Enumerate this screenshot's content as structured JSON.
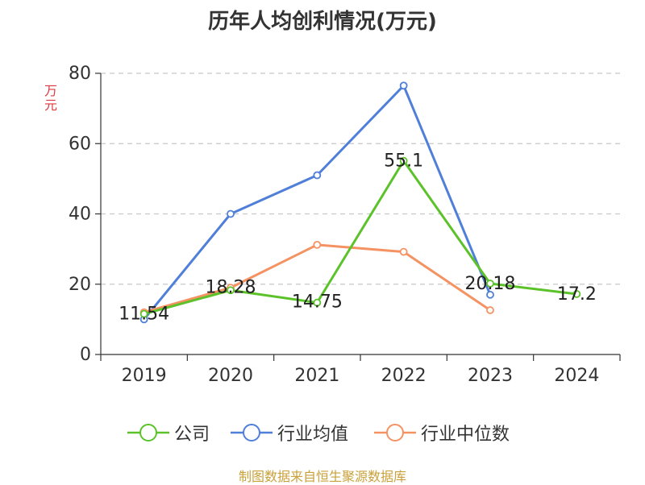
{
  "title": "历年人均创利情况(万元)",
  "source_text": "制图数据来自恒生聚源数据库",
  "colors": {
    "company": "#5cc22a",
    "industry_avg": "#4f7fd9",
    "industry_median": "#f59262",
    "grid": "#c8c8c8",
    "axis": "#333333",
    "unit_label": "#e0393e",
    "source": "#c9a13a"
  },
  "chart_data": {
    "type": "line",
    "title": "历年人均创利情况(万元)",
    "ylabel": "万元",
    "xlabel": "",
    "ylim": [
      0,
      80
    ],
    "yticks": [
      0,
      20,
      40,
      60,
      80
    ],
    "categories": [
      "2019",
      "2020",
      "2021",
      "2022",
      "2023",
      "2024"
    ],
    "grid": "horizontal dashed",
    "legend_position": "bottom",
    "series": [
      {
        "name": "公司",
        "color": "#5cc22a",
        "values": [
          11.54,
          18.28,
          14.75,
          55.1,
          20.18,
          17.2
        ],
        "labels": [
          "11.54",
          "18.28",
          "14.75",
          "55.1",
          "20.18",
          "17.2"
        ]
      },
      {
        "name": "行业均值",
        "color": "#4f7fd9",
        "values": [
          10.0,
          40.0,
          51.0,
          76.5,
          17.0,
          null
        ]
      },
      {
        "name": "行业中位数",
        "color": "#f59262",
        "values": [
          12.0,
          19.0,
          31.2,
          29.2,
          12.6,
          null
        ]
      }
    ]
  }
}
